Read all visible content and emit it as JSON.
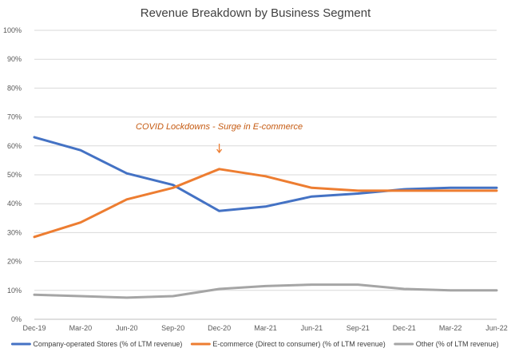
{
  "chart_data": {
    "type": "line",
    "title": "Revenue Breakdown by Business Segment",
    "xlabel": "",
    "ylabel": "",
    "ylim": [
      0,
      100
    ],
    "yticks": [
      "0%",
      "10%",
      "20%",
      "30%",
      "40%",
      "50%",
      "60%",
      "70%",
      "80%",
      "90%",
      "100%"
    ],
    "grid": "horizontal",
    "legend_position": "bottom",
    "categories": [
      "Dec-19",
      "Mar-20",
      "Jun-20",
      "Sep-20",
      "Dec-20",
      "Mar-21",
      "Jun-21",
      "Sep-21",
      "Dec-21",
      "Mar-22",
      "Jun-22"
    ],
    "series": [
      {
        "name": "Company-operated Stores (% of LTM revenue)",
        "color": "#4472C4",
        "values": [
          63,
          58.5,
          50.5,
          46.5,
          37.5,
          39,
          42.5,
          43.5,
          45,
          45.5,
          45.5
        ]
      },
      {
        "name": "E-commerce (Direct to consumer) (% of LTM revenue)",
        "color": "#ED7D31",
        "values": [
          28.5,
          33.5,
          41.5,
          45.5,
          52,
          49.5,
          45.5,
          44.5,
          44.5,
          44.5,
          44.5
        ]
      },
      {
        "name": "Other (% of LTM revenue)",
        "color": "#A5A5A5",
        "values": [
          8.5,
          8,
          7.5,
          8,
          10.5,
          11.5,
          12,
          12,
          10.5,
          10,
          10
        ]
      }
    ],
    "annotation": {
      "text": "COVID Lockdowns - Surge in E-commerce",
      "category": "Dec-20",
      "arrow_color": "#ED7D31"
    }
  }
}
